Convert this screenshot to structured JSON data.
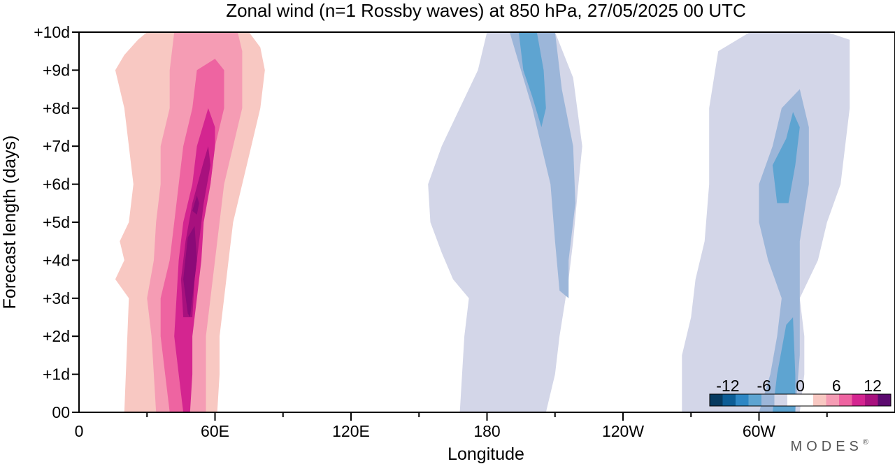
{
  "chart_data": {
    "type": "heatmap",
    "title": "Zonal wind (n=1 Rossby waves) at 850 hPa,  27/05/2025  00 UTC",
    "xlabel": "Longitude",
    "ylabel": "Forecast length (days)",
    "x_ticks": [
      "0",
      "60E",
      "120E",
      "180",
      "120W",
      "60W"
    ],
    "x_tick_values": [
      0,
      60,
      120,
      180,
      240,
      300
    ],
    "x_range": [
      0,
      360
    ],
    "y_ticks": [
      "00",
      "+1d",
      "+2d",
      "+3d",
      "+4d",
      "+5d",
      "+6d",
      "+7d",
      "+8d",
      "+9d",
      "+10d"
    ],
    "y_range": [
      0,
      10
    ],
    "colorbar": {
      "labels": [
        "-12",
        "-6",
        "0",
        "6",
        "12"
      ],
      "label_values": [
        -12,
        -6,
        0,
        6,
        12
      ],
      "range": [
        -15,
        15
      ],
      "colors": [
        "#063a60",
        "#0c5d96",
        "#2d86c4",
        "#5ea4d1",
        "#9cb6d9",
        "#d3d6e8",
        "#ffffff",
        "#ffffff",
        "#f8c8c2",
        "#f59cb4",
        "#ee64a1",
        "#d42590",
        "#a8117e",
        "#5c0a6f"
      ]
    },
    "levels": {
      "pos1": 1.5,
      "pos2": 3,
      "pos3": 4.5,
      "pos4": 6,
      "pos5": 7.5,
      "pos6": 9,
      "neg1": -1.5,
      "neg2": -3,
      "neg3": -4.5
    },
    "contours": [
      {
        "level": "pos1",
        "color": "#f8c8c2",
        "points": [
          [
            20,
            0
          ],
          [
            22,
            3
          ],
          [
            16,
            3.5
          ],
          [
            20,
            4
          ],
          [
            18,
            4.5
          ],
          [
            22,
            5
          ],
          [
            24,
            6
          ],
          [
            22,
            7
          ],
          [
            20,
            8
          ],
          [
            16,
            9
          ],
          [
            20,
            9.4
          ],
          [
            26,
            9.8
          ],
          [
            30,
            10
          ],
          [
            60,
            10
          ],
          [
            75,
            10
          ],
          [
            80,
            9.6
          ],
          [
            82,
            9
          ],
          [
            80,
            8
          ],
          [
            76,
            7
          ],
          [
            72,
            6
          ],
          [
            68,
            5
          ],
          [
            66,
            4
          ],
          [
            64,
            3
          ],
          [
            62,
            2
          ],
          [
            62,
            1
          ],
          [
            61,
            0
          ]
        ]
      },
      {
        "level": "pos2",
        "color": "#f59cb4",
        "points": [
          [
            34,
            0
          ],
          [
            33,
            1
          ],
          [
            32,
            2
          ],
          [
            30,
            3
          ],
          [
            33,
            4
          ],
          [
            34,
            5
          ],
          [
            36,
            6
          ],
          [
            36,
            7
          ],
          [
            40,
            8
          ],
          [
            40,
            9
          ],
          [
            42,
            10
          ],
          [
            70,
            10
          ],
          [
            72,
            9.5
          ],
          [
            72,
            9
          ],
          [
            72,
            8
          ],
          [
            68,
            7
          ],
          [
            64,
            6
          ],
          [
            62,
            5
          ],
          [
            60,
            4
          ],
          [
            58,
            3
          ],
          [
            56,
            2
          ],
          [
            56,
            1
          ],
          [
            56,
            0
          ]
        ]
      },
      {
        "level": "pos3",
        "color": "#ee64a1",
        "points": [
          [
            40,
            0
          ],
          [
            38,
            1
          ],
          [
            36,
            2
          ],
          [
            36,
            3
          ],
          [
            40,
            4
          ],
          [
            42,
            5
          ],
          [
            44,
            6
          ],
          [
            46,
            7
          ],
          [
            50,
            8
          ],
          [
            52,
            9
          ],
          [
            60,
            9.3
          ],
          [
            64,
            9
          ],
          [
            64,
            8
          ],
          [
            60,
            7
          ],
          [
            58,
            6
          ],
          [
            54,
            5
          ],
          [
            52,
            4
          ],
          [
            50,
            3
          ],
          [
            49,
            2
          ],
          [
            48,
            1
          ],
          [
            47,
            0
          ]
        ]
      },
      {
        "level": "pos4",
        "color": "#d42590",
        "points": [
          [
            46,
            0
          ],
          [
            44,
            1
          ],
          [
            42,
            2
          ],
          [
            43,
            3
          ],
          [
            44,
            4
          ],
          [
            46,
            5
          ],
          [
            50,
            6
          ],
          [
            52,
            7
          ],
          [
            57,
            8
          ],
          [
            60,
            7.5
          ],
          [
            60,
            7
          ],
          [
            58,
            6
          ],
          [
            55,
            5
          ],
          [
            54,
            4
          ],
          [
            52,
            3
          ],
          [
            50,
            2
          ],
          [
            50,
            1
          ],
          [
            49,
            0
          ]
        ]
      },
      {
        "level": "pos5",
        "color": "#a8117e",
        "points": [
          [
            46,
            2.5
          ],
          [
            45,
            3.5
          ],
          [
            47,
            4.5
          ],
          [
            50,
            5.5
          ],
          [
            55,
            6.6
          ],
          [
            57,
            7
          ],
          [
            58,
            6.5
          ],
          [
            55,
            5.5
          ],
          [
            53,
            4.5
          ],
          [
            51,
            3.5
          ],
          [
            50,
            2.5
          ]
        ]
      },
      {
        "level": "pos6",
        "color": "#8b0a78",
        "points": [
          [
            48,
            2.6
          ],
          [
            46,
            3.5
          ],
          [
            48,
            4.6
          ],
          [
            51,
            4.9
          ],
          [
            52,
            4
          ],
          [
            50,
            3
          ],
          [
            49,
            2.5
          ]
        ]
      },
      {
        "level": "pos6",
        "color": "#8b0a78",
        "points": [
          [
            50,
            5.3
          ],
          [
            52,
            5.7
          ],
          [
            53,
            5.5
          ],
          [
            52,
            5.2
          ]
        ]
      },
      {
        "level": "neg1",
        "color": "#d3d6e8",
        "points": [
          [
            168,
            0
          ],
          [
            170,
            2
          ],
          [
            172,
            3
          ],
          [
            165,
            3.5
          ],
          [
            160,
            4.2
          ],
          [
            155,
            5
          ],
          [
            154,
            6
          ],
          [
            160,
            7
          ],
          [
            168,
            8
          ],
          [
            176,
            9
          ],
          [
            180,
            10
          ],
          [
            210,
            10
          ],
          [
            218,
            8.8
          ],
          [
            222,
            7
          ],
          [
            220,
            5.8
          ],
          [
            218,
            4.5
          ],
          [
            216,
            3.5
          ],
          [
            212,
            2
          ],
          [
            210,
            1
          ],
          [
            206,
            0
          ]
        ]
      },
      {
        "level": "neg2",
        "color": "#9cb6d9",
        "points": [
          [
            190,
            10
          ],
          [
            195,
            9
          ],
          [
            200,
            8
          ],
          [
            208,
            6
          ],
          [
            210,
            4.5
          ],
          [
            212,
            3.2
          ],
          [
            216,
            3
          ],
          [
            216,
            4
          ],
          [
            219,
            5.5
          ],
          [
            218,
            7
          ],
          [
            213,
            8.5
          ],
          [
            210,
            10
          ]
        ]
      },
      {
        "level": "neg3",
        "color": "#5ea4d1",
        "points": [
          [
            194,
            10
          ],
          [
            196,
            9
          ],
          [
            200,
            8.3
          ],
          [
            204,
            7.5
          ],
          [
            206,
            8
          ],
          [
            205,
            9
          ],
          [
            202,
            10
          ]
        ]
      },
      {
        "level": "neg1",
        "color": "#d3d6e8",
        "points": [
          [
            266,
            0
          ],
          [
            266,
            1.5
          ],
          [
            270,
            2.5
          ],
          [
            272,
            3.5
          ],
          [
            276,
            4.5
          ],
          [
            278,
            6
          ],
          [
            278,
            8
          ],
          [
            282,
            9.5
          ],
          [
            296,
            10
          ],
          [
            330,
            10
          ],
          [
            340,
            9.8
          ],
          [
            340,
            8
          ],
          [
            336,
            6
          ],
          [
            330,
            5
          ],
          [
            326,
            4
          ],
          [
            318,
            3
          ],
          [
            320,
            2
          ],
          [
            320,
            1
          ],
          [
            318,
            0
          ]
        ]
      },
      {
        "level": "neg2",
        "color": "#9cb6d9",
        "points": [
          [
            300,
            0
          ],
          [
            305,
            1
          ],
          [
            308,
            2
          ],
          [
            310,
            3
          ],
          [
            304,
            4
          ],
          [
            300,
            5
          ],
          [
            300,
            6
          ],
          [
            306,
            7
          ],
          [
            310,
            8
          ],
          [
            318,
            8.5
          ],
          [
            322,
            7.5
          ],
          [
            322,
            6
          ],
          [
            318,
            4.5
          ],
          [
            318,
            3
          ],
          [
            318,
            1.5
          ],
          [
            316,
            0
          ]
        ]
      },
      {
        "level": "neg3",
        "color": "#5ea4d1",
        "points": [
          [
            306,
            0
          ],
          [
            308,
            1
          ],
          [
            312,
            2.3
          ],
          [
            315,
            2.5
          ],
          [
            316,
            1
          ],
          [
            316,
            0
          ]
        ]
      },
      {
        "level": "neg3",
        "color": "#5ea4d1",
        "points": [
          [
            308,
            5.5
          ],
          [
            306,
            6.5
          ],
          [
            312,
            7.2
          ],
          [
            315,
            7.9
          ],
          [
            318,
            7.5
          ],
          [
            316,
            6.5
          ],
          [
            313,
            5.5
          ]
        ]
      }
    ]
  },
  "brand": "MODES",
  "brand_mark": "®"
}
